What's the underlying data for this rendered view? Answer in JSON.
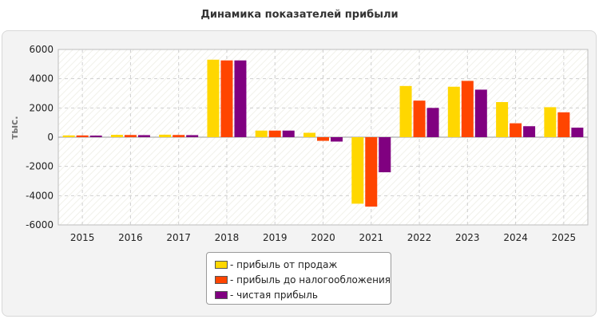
{
  "chart_data": {
    "type": "bar",
    "title": "Динамика показателей прибыли",
    "ylabel": "тыс.",
    "xlabel": "",
    "categories": [
      "2015",
      "2016",
      "2017",
      "2018",
      "2019",
      "2020",
      "2021",
      "2022",
      "2023",
      "2024",
      "2025"
    ],
    "series": [
      {
        "name": "прибыль от продаж",
        "color": "#ffd700",
        "values": [
          120,
          160,
          170,
          5300,
          450,
          300,
          -4550,
          3500,
          3450,
          2400,
          2050
        ]
      },
      {
        "name": "прибыль до налогообложения",
        "color": "#ff4500",
        "values": [
          120,
          150,
          150,
          5250,
          450,
          -250,
          -4750,
          2500,
          3850,
          950,
          1700
        ]
      },
      {
        "name": "чистая прибыль",
        "color": "#800080",
        "values": [
          110,
          140,
          140,
          5250,
          450,
          -300,
          -2400,
          2000,
          3250,
          750,
          650
        ]
      }
    ],
    "ylim": [
      -6000,
      6000
    ],
    "yticks": [
      "6000",
      "4000",
      "2000",
      "0",
      "-2000",
      "-4000",
      "-6000"
    ],
    "ytick_values": [
      6000,
      4000,
      2000,
      0,
      -2000,
      -4000,
      -6000
    ],
    "grid": true,
    "legend_position": "bottom"
  },
  "legend": {
    "items": [
      {
        "label": "- прибыль от продаж",
        "color": "#ffd700"
      },
      {
        "label": "- прибыль до налогообложения",
        "color": "#ff4500"
      },
      {
        "label": "- чистая прибыль",
        "color": "#800080"
      }
    ]
  }
}
